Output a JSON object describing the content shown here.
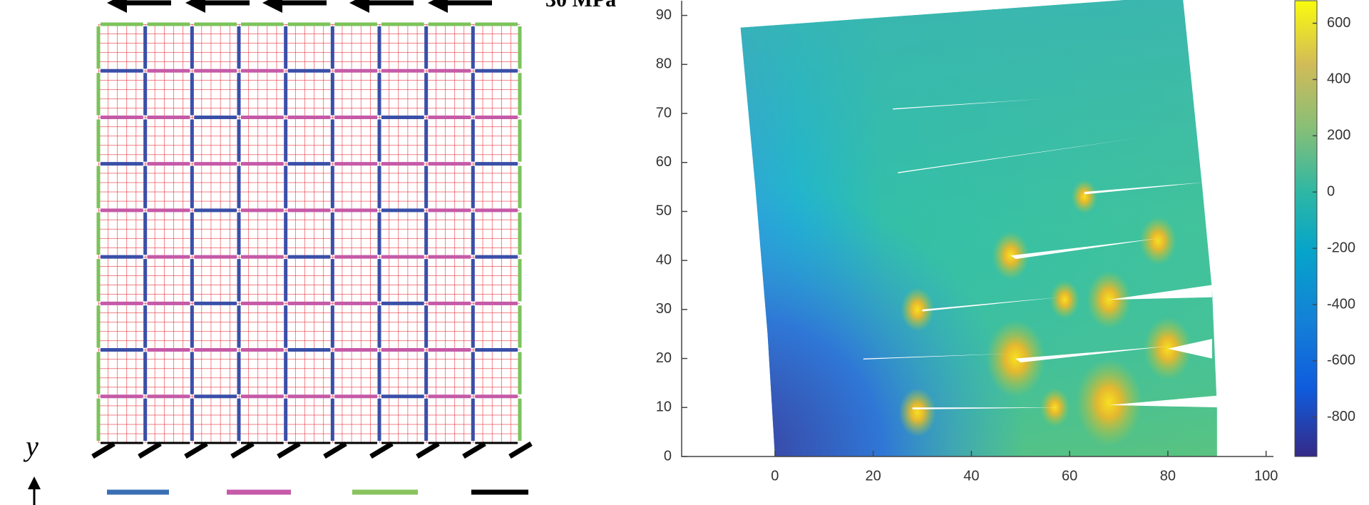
{
  "left_panel": {
    "load_label": "30 MPa",
    "axis_label": "y"
  },
  "chart_data": {
    "type": "heatmap",
    "xlim": [
      -19,
      101.5
    ],
    "ylim": [
      0,
      93
    ],
    "xticks": [
      0,
      20,
      40,
      60,
      80,
      100
    ],
    "yticks": [
      0,
      10,
      20,
      30,
      40,
      50,
      60,
      70,
      80,
      90
    ],
    "colorbar": {
      "lim": [
        -940,
        680
      ],
      "ticks": [
        -800,
        -600,
        -400,
        -200,
        0,
        200,
        400,
        600
      ]
    }
  }
}
